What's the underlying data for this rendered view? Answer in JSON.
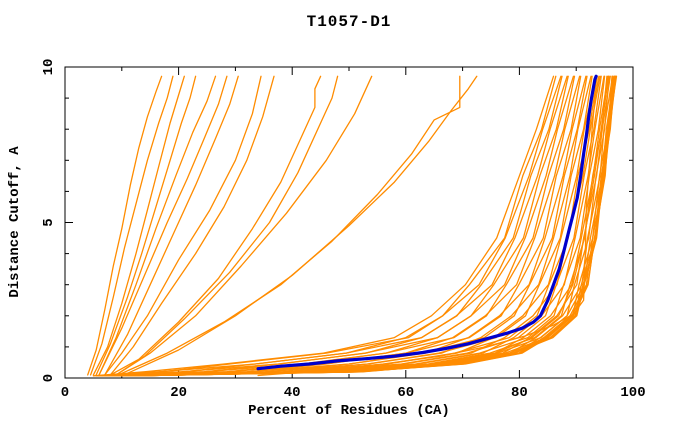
{
  "chart_data": {
    "type": "line",
    "title": "T1057-D1",
    "xlabel": "Percent of Residues (CA)",
    "ylabel": "Distance Cutoff, A",
    "xlim": [
      0,
      100
    ],
    "ylim": [
      0,
      10
    ],
    "x_major_ticks": [
      0,
      20,
      40,
      60,
      80,
      100
    ],
    "x_minor_ticks": [
      10,
      30,
      50,
      70,
      90
    ],
    "y_major_ticks": [
      0,
      5,
      10
    ],
    "y_minor_ticks": [
      1,
      2,
      3,
      4,
      6,
      7,
      8,
      9
    ],
    "grid": false,
    "legend": "none",
    "colors": {
      "model_lines": "#FF8C00",
      "highlight_line": "#0000CD",
      "axis": "#000000",
      "text": "#000000",
      "background": "#FFFFFF"
    },
    "highlight_series": {
      "name": "highlighted-model",
      "points": [
        [
          34,
          0.3
        ],
        [
          38,
          0.38
        ],
        [
          43,
          0.45
        ],
        [
          48,
          0.55
        ],
        [
          53,
          0.62
        ],
        [
          58,
          0.7
        ],
        [
          63,
          0.82
        ],
        [
          67,
          0.95
        ],
        [
          71,
          1.1
        ],
        [
          75,
          1.3
        ],
        [
          78,
          1.45
        ],
        [
          80.5,
          1.6
        ],
        [
          82.5,
          1.8
        ],
        [
          83.7,
          2.0
        ],
        [
          85,
          2.5
        ],
        [
          86,
          3.0
        ],
        [
          87,
          3.5
        ],
        [
          88,
          4.2
        ],
        [
          88.8,
          4.8
        ],
        [
          89.5,
          5.3
        ],
        [
          90.2,
          5.8
        ],
        [
          90.8,
          6.5
        ],
        [
          91.3,
          7.2
        ],
        [
          91.8,
          7.8
        ],
        [
          92.2,
          8.4
        ],
        [
          92.6,
          8.9
        ],
        [
          93,
          9.3
        ],
        [
          93.3,
          9.6
        ],
        [
          93.5,
          9.7
        ]
      ]
    },
    "model_series": [
      {
        "points": [
          [
            4,
            0.1
          ],
          [
            5.5,
            0.9
          ],
          [
            7,
            2.2
          ],
          [
            8.5,
            3.6
          ],
          [
            10,
            4.8
          ],
          [
            11.5,
            6.2
          ],
          [
            13,
            7.4
          ],
          [
            14.5,
            8.4
          ],
          [
            16,
            9.2
          ],
          [
            17,
            9.7
          ]
        ]
      },
      {
        "points": [
          [
            4.5,
            0.1
          ],
          [
            6.5,
            1.1
          ],
          [
            8.5,
            2.6
          ],
          [
            10.5,
            4.2
          ],
          [
            12.5,
            5.6
          ],
          [
            14.5,
            7
          ],
          [
            16.5,
            8.2
          ],
          [
            18,
            9
          ],
          [
            19,
            9.7
          ]
        ]
      },
      {
        "points": [
          [
            5,
            0.1
          ],
          [
            7.5,
            1
          ],
          [
            10,
            2.4
          ],
          [
            12.5,
            4
          ],
          [
            14.5,
            5.4
          ],
          [
            16.5,
            6.8
          ],
          [
            18.5,
            8.2
          ],
          [
            20,
            9.1
          ],
          [
            21,
            9.7
          ]
        ]
      },
      {
        "points": [
          [
            5.5,
            0.1
          ],
          [
            8,
            1.1
          ],
          [
            11,
            2.6
          ],
          [
            13.5,
            4
          ],
          [
            16,
            5.5
          ],
          [
            18.5,
            7
          ],
          [
            20.5,
            8.2
          ],
          [
            22,
            9
          ],
          [
            23,
            9.7
          ]
        ]
      },
      {
        "points": [
          [
            6,
            0.1
          ],
          [
            9,
            1.3
          ],
          [
            12.5,
            3
          ],
          [
            16,
            4.8
          ],
          [
            19.5,
            6.5
          ],
          [
            22.5,
            7.9
          ],
          [
            25,
            8.9
          ],
          [
            26.5,
            9.7
          ]
        ]
      },
      {
        "points": [
          [
            6,
            0.1
          ],
          [
            10,
            1.6
          ],
          [
            14,
            3.3
          ],
          [
            18,
            5
          ],
          [
            21.5,
            6.4
          ],
          [
            24.5,
            7.7
          ],
          [
            27,
            8.8
          ],
          [
            28.5,
            9.7
          ]
        ]
      },
      {
        "points": [
          [
            7,
            0.1
          ],
          [
            11,
            1.4
          ],
          [
            15,
            3
          ],
          [
            19,
            4.6
          ],
          [
            23,
            6.2
          ],
          [
            26.5,
            7.7
          ],
          [
            29,
            8.8
          ],
          [
            30.5,
            9.7
          ]
        ]
      },
      {
        "points": [
          [
            7,
            0.1
          ],
          [
            10,
            0.8
          ],
          [
            14.5,
            2
          ],
          [
            20,
            3.8
          ],
          [
            25.5,
            5.4
          ],
          [
            30,
            7
          ],
          [
            33,
            8.5
          ],
          [
            34.5,
            9.7
          ]
        ]
      },
      {
        "points": [
          [
            8,
            0.1
          ],
          [
            12,
            1
          ],
          [
            17,
            2.4
          ],
          [
            23,
            4
          ],
          [
            28,
            5.5
          ],
          [
            32,
            7
          ],
          [
            34.8,
            8.4
          ],
          [
            36.8,
            9.7
          ]
        ]
      },
      {
        "points": [
          [
            8,
            0.1
          ],
          [
            13,
            0.6
          ],
          [
            20,
            1.8
          ],
          [
            27,
            3.2
          ],
          [
            33,
            4.8
          ],
          [
            38,
            6.3
          ],
          [
            41.5,
            7.7
          ],
          [
            44,
            8.7
          ],
          [
            44,
            9.3
          ],
          [
            45,
            9.7
          ]
        ]
      },
      {
        "points": [
          [
            9,
            0.1
          ],
          [
            14,
            0.7
          ],
          [
            21,
            1.9
          ],
          [
            29,
            3.4
          ],
          [
            36,
            5
          ],
          [
            41,
            6.6
          ],
          [
            45,
            8.2
          ],
          [
            47,
            9
          ],
          [
            48,
            9.7
          ]
        ]
      },
      {
        "points": [
          [
            9,
            0.1
          ],
          [
            15,
            0.8
          ],
          [
            23,
            2
          ],
          [
            31,
            3.6
          ],
          [
            39,
            5.3
          ],
          [
            46,
            7
          ],
          [
            51,
            8.5
          ],
          [
            54,
            9.7
          ]
        ]
      },
      {
        "points": [
          [
            10,
            0.15
          ],
          [
            18,
            0.8
          ],
          [
            28,
            1.8
          ],
          [
            38,
            3
          ],
          [
            47,
            4.4
          ],
          [
            55,
            5.9
          ],
          [
            61,
            7.2
          ],
          [
            65,
            8.3
          ],
          [
            69.5,
            8.7
          ],
          [
            69.5,
            9.7
          ]
        ]
      },
      {
        "points": [
          [
            11,
            0.15
          ],
          [
            20,
            0.9
          ],
          [
            30,
            2
          ],
          [
            40,
            3.3
          ],
          [
            50,
            4.9
          ],
          [
            58,
            6.3
          ],
          [
            64,
            7.6
          ],
          [
            68,
            8.6
          ],
          [
            71,
            9.3
          ],
          [
            72.5,
            9.7
          ]
        ]
      },
      {
        "points": [
          [
            34,
            0.08
          ],
          [
            46,
            0.25
          ],
          [
            56,
            0.45
          ],
          [
            66,
            0.7
          ],
          [
            74,
            1
          ],
          [
            81,
            1.35
          ],
          [
            86,
            1.7
          ],
          [
            89.5,
            2.05
          ],
          [
            91.3,
            2.5
          ],
          [
            91.6,
            4
          ],
          [
            91.8,
            5.5
          ],
          [
            92.3,
            6.8
          ],
          [
            92.8,
            8
          ],
          [
            93.3,
            9
          ],
          [
            94,
            9.7
          ]
        ]
      }
    ],
    "pack_series": {
      "y_levels": [
        0.07,
        0.2,
        0.45,
        0.8,
        1.3,
        2.0,
        3.0,
        4.5,
        6.5,
        8.0,
        9.7
      ],
      "x_values": [
        [
          5,
          14,
          28,
          45.5,
          58,
          64.5,
          70.5,
          76,
          80,
          83,
          86
        ],
        [
          5.5,
          17,
          29,
          46,
          60.5,
          66.5,
          71.2,
          77.4,
          80.6,
          83.9,
          86.4
        ],
        [
          5.7,
          16.5,
          33.5,
          49.5,
          60,
          66.5,
          72.9,
          77.5,
          81.7,
          84.1,
          87.3
        ],
        [
          6,
          21,
          33.5,
          49.5,
          62.8,
          69,
          73.3,
          78.9,
          82,
          85.2,
          87.5
        ],
        [
          6.5,
          20.5,
          37.5,
          53,
          62.8,
          68.9,
          75.2,
          79.2,
          83.2,
          85.4,
          88.4
        ],
        [
          7,
          24.5,
          37.8,
          52.8,
          65.6,
          71.5,
          75.5,
          80.7,
          83.6,
          86.5,
          88.6
        ],
        [
          7,
          24.5,
          41.5,
          56.5,
          65.6,
          71.5,
          77.4,
          81,
          84.7,
          86.7,
          89.5
        ],
        [
          7.5,
          28.5,
          42,
          56.5,
          68.5,
          74.2,
          77.7,
          82.4,
          85.1,
          87.8,
          89.7
        ],
        [
          8,
          28.5,
          45.8,
          60,
          68.3,
          74,
          79.5,
          82.7,
          86.2,
          88,
          90.6
        ],
        [
          8,
          32,
          46,
          60,
          71.2,
          76.8,
          79.9,
          84.2,
          86.5,
          89.1,
          90.8
        ],
        [
          8.5,
          32.3,
          50,
          63.5,
          71,
          76.5,
          81.7,
          84.5,
          87.7,
          89.3,
          91.7
        ],
        [
          9,
          35.5,
          50,
          63,
          73.8,
          79.1,
          81.8,
          85.8,
          87.9,
          90.2,
          91.9
        ],
        [
          9,
          35.2,
          53.4,
          66.3,
          73.2,
          78.6,
          83.4,
          86,
          88.9,
          90.3,
          92.6
        ],
        [
          9.5,
          38.6,
          53.2,
          65.8,
          75.9,
          81.1,
          83.5,
          87.2,
          89.1,
          91.3,
          92.8
        ],
        [
          9.5,
          38.3,
          56.7,
          69,
          75.5,
          80.6,
          85.1,
          87.3,
          90.1,
          91.4,
          93.5
        ],
        [
          10,
          41.6,
          56.5,
          68.6,
          78.2,
          83.1,
          85.2,
          88.6,
          90.3,
          92.3,
          93.7
        ],
        [
          10,
          40.8,
          59.7,
          71.5,
          77.4,
          82.4,
          86.6,
          88.5,
          91.2,
          92.5,
          94.2
        ],
        [
          10.5,
          43.9,
          59.2,
          70.8,
          79.8,
          84.6,
          86.5,
          89.6,
          91.4,
          93.1,
          94.4
        ],
        [
          10.5,
          43.2,
          62.2,
          73.6,
          79,
          83.9,
          87.9,
          89.8,
          92.1,
          93.3,
          94.9
        ],
        [
          10.8,
          46.2,
          61.7,
          73,
          81.5,
          86.1,
          87.8,
          90.7,
          92.3,
          93.9,
          95
        ],
        [
          11,
          45.5,
          64.6,
          75.7,
          80.7,
          85.5,
          89.2,
          90.9,
          93,
          94.1,
          95.6
        ],
        [
          11,
          48.1,
          63.9,
          74.8,
          82.7,
          87.4,
          88.9,
          91.5,
          92.9,
          94.5,
          95.4
        ],
        [
          11.2,
          47,
          66.3,
          77.1,
          81.9,
          86.6,
          90.1,
          91.3,
          93.6,
          94.6,
          96
        ],
        [
          11.4,
          49.5,
          65.5,
          76.2,
          83.8,
          88.4,
          89.7,
          92.2,
          93.5,
          95,
          95.8
        ],
        [
          11.5,
          48.6,
          68,
          78.4,
          82.9,
          87.6,
          91,
          92,
          94.2,
          94.9,
          96.4
        ],
        [
          11.7,
          51,
          67.2,
          77.5,
          84.8,
          89.4,
          90.5,
          92.9,
          94.1,
          95.6,
          96.3
        ],
        [
          11.7,
          50,
          69.1,
          79.4,
          83.7,
          88.4,
          91.4,
          92.5,
          94.6,
          95.3,
          96.7
        ],
        [
          11.8,
          51.7,
          68,
          78.2,
          85.4,
          89.8,
          90.9,
          93.3,
          94.4,
          95.8,
          96.5
        ],
        [
          11.9,
          50.6,
          69.9,
          79.9,
          84.3,
          88.9,
          91.8,
          92.9,
          94.9,
          95.5,
          96.9
        ],
        [
          11.9,
          52,
          68.8,
          78.8,
          85.7,
          90,
          91.2,
          93.5,
          94.6,
          95.9,
          96.8
        ],
        [
          12,
          51,
          70.2,
          80.2,
          84.6,
          89.2,
          92,
          93.3,
          95,
          95.9,
          97
        ],
        [
          12,
          52.3,
          69.2,
          79.1,
          85.9,
          90.1,
          91.4,
          93.6,
          94.7,
          96,
          96.8
        ],
        [
          12,
          51.5,
          70.5,
          80.5,
          85,
          89.5,
          92.1,
          93.2,
          95.1,
          95.7,
          97.1
        ],
        [
          11.2,
          47.4,
          65,
          75.8,
          82.2,
          86.9,
          89.4,
          91.4,
          93.2,
          94.4,
          95.7
        ]
      ]
    }
  }
}
